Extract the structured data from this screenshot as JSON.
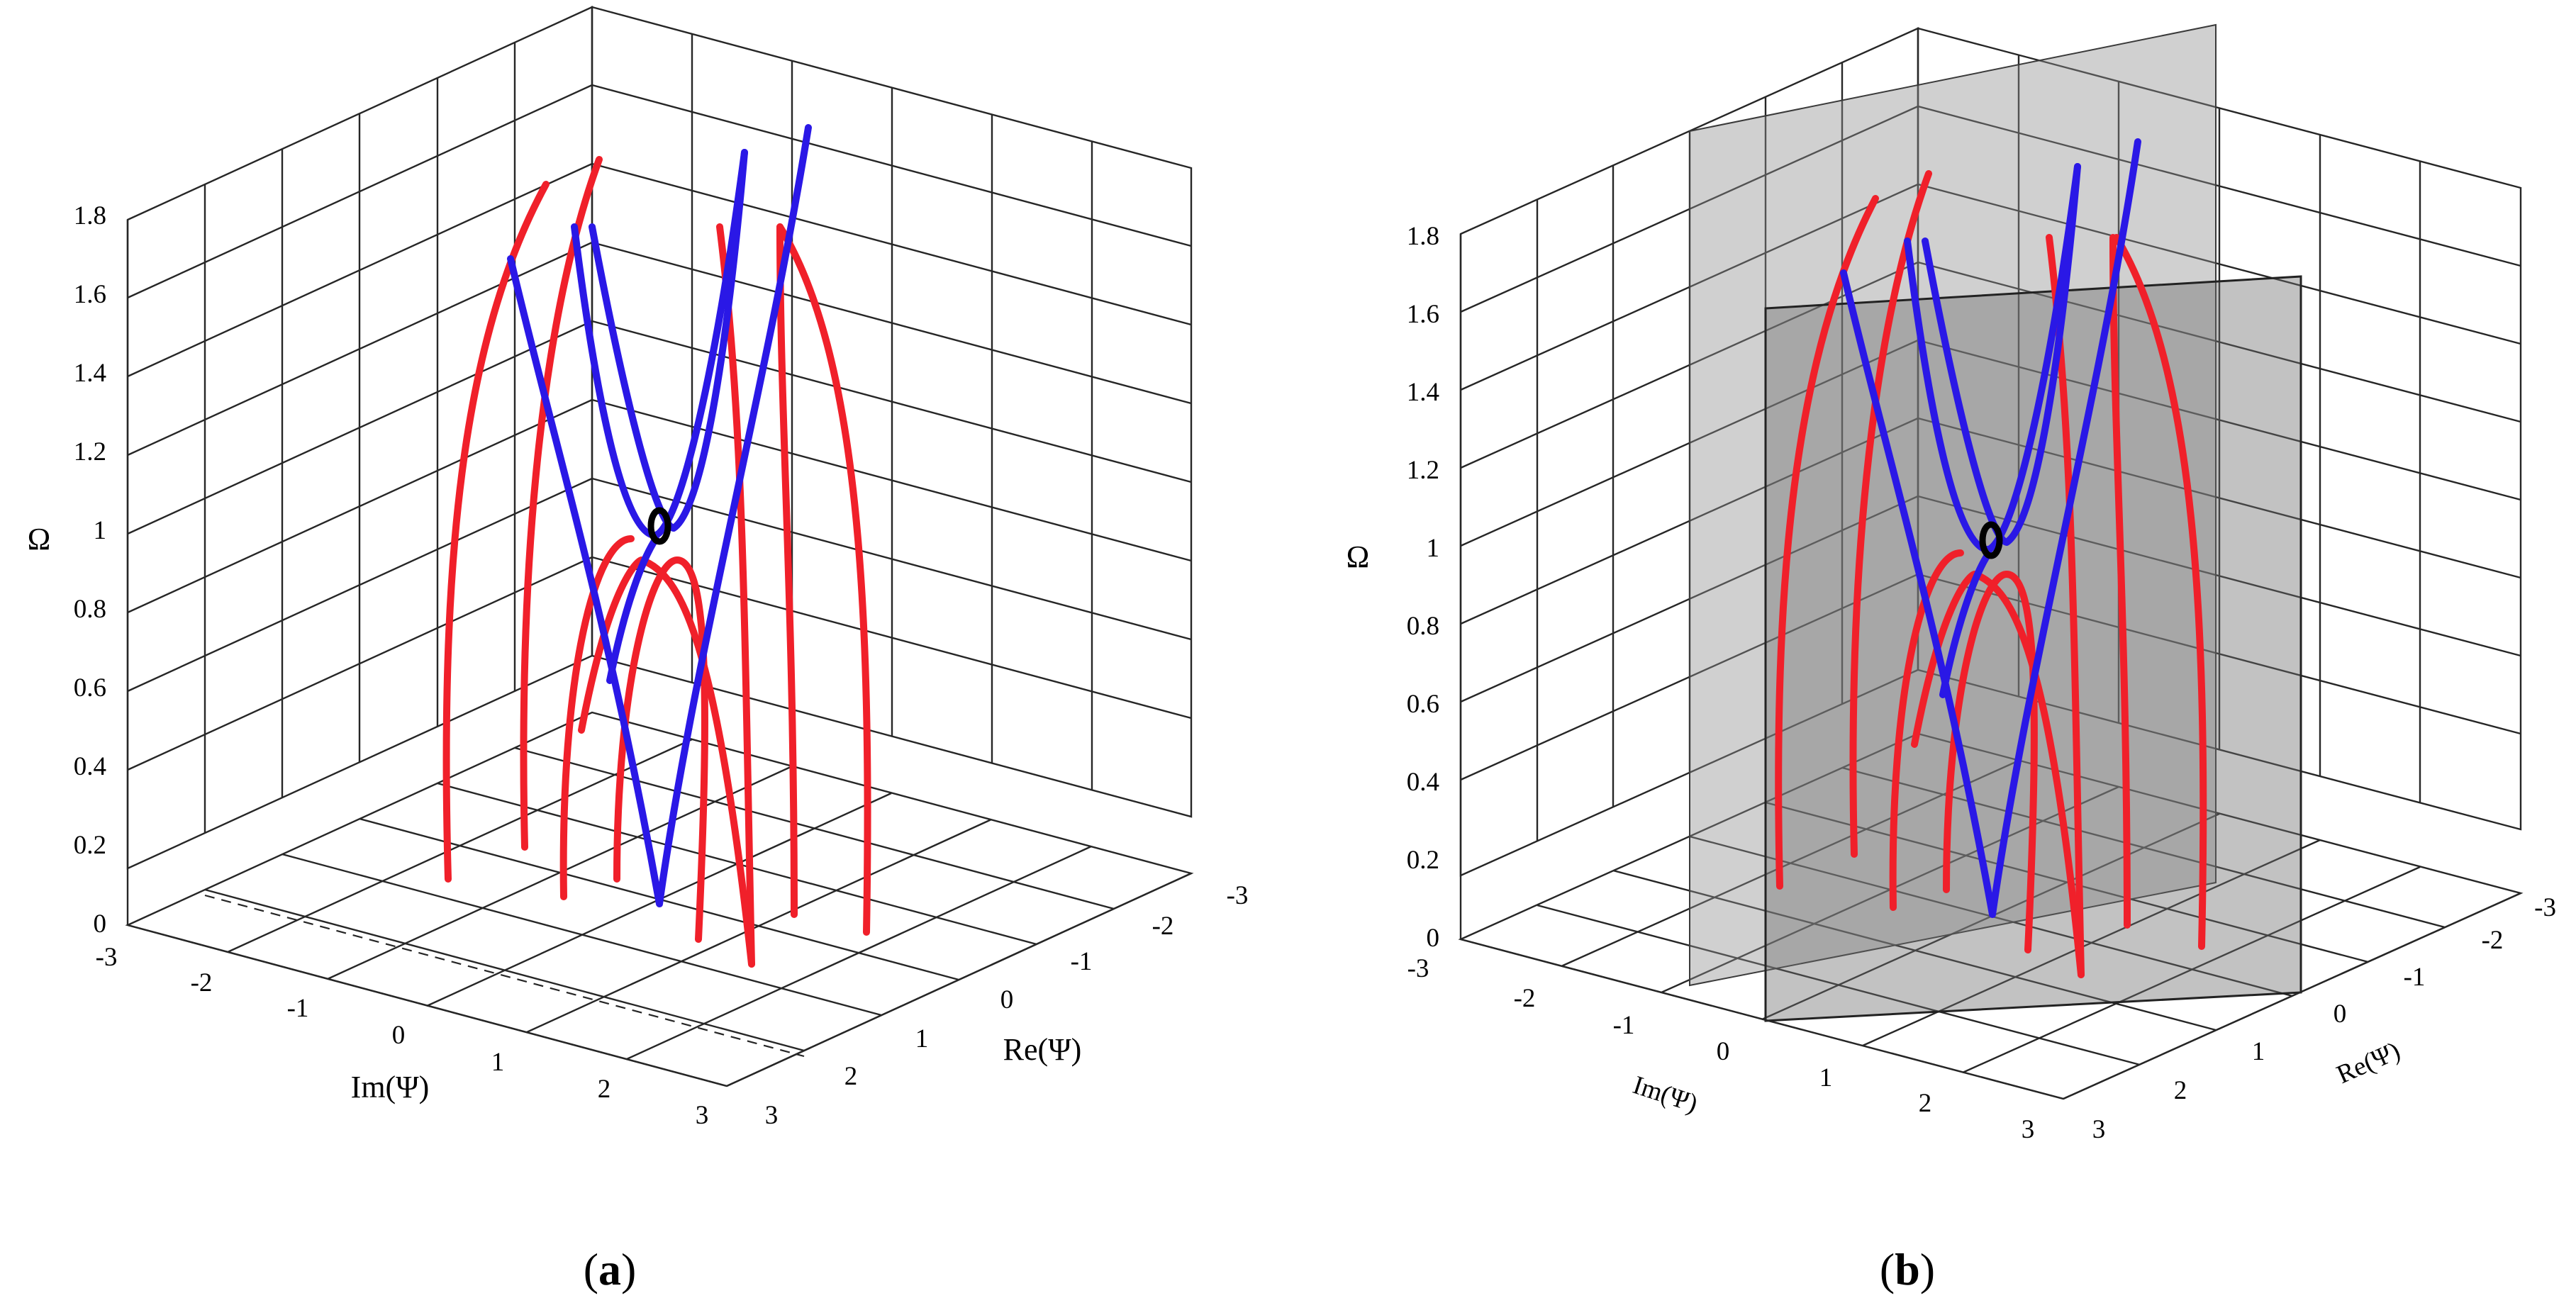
{
  "chart_data": [
    {
      "type": "line",
      "panel": "(a)",
      "caption": "(a)",
      "zlabel": "Ω",
      "xlabel": "Im(Ψ)",
      "ylabel": "Re(Ψ)",
      "zlim": [
        0,
        1.8
      ],
      "xlim": [
        -3,
        3
      ],
      "ylim": [
        -3,
        3
      ],
      "grid": true,
      "z_ticks": [
        "0",
        "0.2",
        "0.4",
        "0.6",
        "0.8",
        "1",
        "1.2",
        "1.4",
        "1.6",
        "1.8"
      ],
      "x_ticks": [
        "-3",
        "-2",
        "-1",
        "0",
        "1",
        "2",
        "3"
      ],
      "y_ticks": [
        "3",
        "2",
        "1",
        "0",
        "-1",
        "-2",
        "-3"
      ],
      "annotations": [
        "0"
      ],
      "series": [
        {
          "name": "red-1",
          "color": "#f0202a",
          "kind": "parabola",
          "base_left": -1.35,
          "apex": 1.8,
          "base_right": 0.45
        },
        {
          "name": "red-2",
          "color": "#f0202a",
          "kind": "parabola",
          "base_left": -0.95,
          "apex": 1.85,
          "base_right": 0.95
        },
        {
          "name": "red-3",
          "color": "#f0202a",
          "kind": "parabola",
          "base_left": -0.4,
          "apex": 1.6,
          "base_right": 1.35
        },
        {
          "name": "red-4",
          "color": "#f0202a",
          "kind": "parabola",
          "base_left": -0.1,
          "apex": 0.9,
          "base_right": 0.55
        },
        {
          "name": "red-5",
          "color": "#f0202a",
          "kind": "parabola",
          "base_left": 0.3,
          "apex": 0.95,
          "base_right": 1.8
        },
        {
          "name": "blue-1",
          "color": "#2a18e6",
          "kind": "v-shape",
          "vertex_z": 0.05,
          "top_left": 1.65,
          "top_right": 1.85
        },
        {
          "name": "blue-2",
          "color": "#2a18e6",
          "kind": "u-shape",
          "vertex_z": 0.95,
          "top_left": 1.7,
          "top_right": 1.85
        }
      ]
    },
    {
      "type": "line",
      "panel": "(b)",
      "caption": "(b)",
      "zlabel": "Ω",
      "xlabel": "Im(Ψ)",
      "ylabel": "Re(Ψ)",
      "zlim": [
        0,
        1.8
      ],
      "xlim": [
        -3,
        3
      ],
      "ylim": [
        -3,
        3
      ],
      "grid": true,
      "z_ticks": [
        "0",
        "0.2",
        "0.4",
        "0.6",
        "0.8",
        "1",
        "1.2",
        "1.4",
        "1.6",
        "1.8"
      ],
      "x_ticks": [
        "-3",
        "-2",
        "-1",
        "0",
        "1",
        "2",
        "3"
      ],
      "y_ticks": [
        "3",
        "2",
        "1",
        "0",
        "-1",
        "-2",
        "-3"
      ],
      "annotations": [
        "0"
      ],
      "planes": [
        "Im(Ψ)=0",
        "Re(Ψ)=0"
      ],
      "series": [
        {
          "name": "red-1",
          "color": "#f0202a",
          "kind": "parabola",
          "base_left": -1.35,
          "apex": 1.8,
          "base_right": 0.45
        },
        {
          "name": "red-2",
          "color": "#f0202a",
          "kind": "parabola",
          "base_left": -0.95,
          "apex": 1.85,
          "base_right": 0.95
        },
        {
          "name": "red-3",
          "color": "#f0202a",
          "kind": "parabola",
          "base_left": -0.4,
          "apex": 1.6,
          "base_right": 1.35
        },
        {
          "name": "red-4",
          "color": "#f0202a",
          "kind": "parabola",
          "base_left": -0.1,
          "apex": 0.9,
          "base_right": 0.55
        },
        {
          "name": "red-5",
          "color": "#f0202a",
          "kind": "parabola",
          "base_left": 0.3,
          "apex": 0.95,
          "base_right": 1.8
        },
        {
          "name": "blue-1",
          "color": "#2a18e6",
          "kind": "v-shape",
          "vertex_z": 0.05,
          "top_left": 1.65,
          "top_right": 1.85
        },
        {
          "name": "blue-2",
          "color": "#2a18e6",
          "kind": "u-shape",
          "vertex_z": 0.95,
          "top_left": 1.7,
          "top_right": 1.85
        }
      ]
    }
  ]
}
